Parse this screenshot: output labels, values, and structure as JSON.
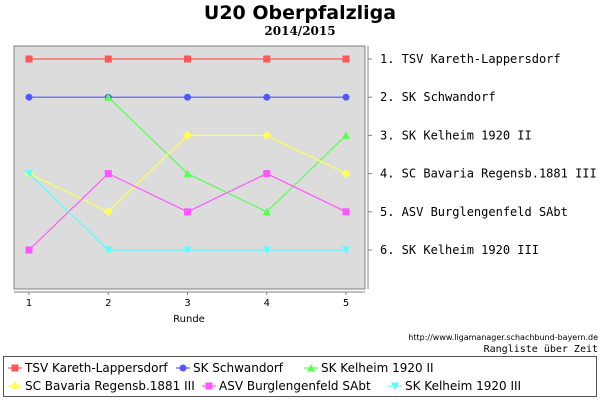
{
  "chart_data": {
    "type": "line",
    "title": "U20 Oberpfalzliga",
    "subtitle": "2014/2015",
    "xlabel": "Runde",
    "x": [
      1,
      2,
      3,
      4,
      5
    ],
    "ylim": [
      1,
      6
    ],
    "y_inverted": true,
    "grid": false,
    "background_color": "#dcdcdc",
    "final_ranking": [
      "1. TSV Kareth-Lappersdorf",
      "2. SK Schwandorf",
      "3. SK Kelheim 1920 II",
      "4. SC Bavaria Regensb.1881 III",
      "5. ASV Burglengenfeld SAbt",
      "6. SK Kelheim 1920 III"
    ],
    "series": [
      {
        "name": "TSV Kareth-Lappersdorf",
        "values": [
          1,
          1,
          1,
          1,
          1
        ],
        "color": "#ff5555",
        "marker": "square"
      },
      {
        "name": "SK Schwandorf",
        "values": [
          2,
          2,
          2,
          2,
          2
        ],
        "color": "#5555ff",
        "marker": "circle"
      },
      {
        "name": "SK Kelheim 1920 II",
        "values": [
          null,
          2,
          4,
          5,
          3
        ],
        "color": "#55ff55",
        "marker": "triangle-up"
      },
      {
        "name": "SC Bavaria Regensb.1881 III",
        "values": [
          4,
          5,
          3,
          3,
          4
        ],
        "color": "#ffff55",
        "marker": "diamond"
      },
      {
        "name": "ASV Burglengenfeld SAbt",
        "values": [
          6,
          4,
          5,
          4,
          5
        ],
        "color": "#ff55ff",
        "marker": "square"
      },
      {
        "name": "SK Kelheim 1920 III",
        "values": [
          4,
          6,
          6,
          6,
          6
        ],
        "color": "#55ffff",
        "marker": "triangle-down"
      }
    ],
    "legend_position": "bottom"
  },
  "footer": {
    "source": "http://www.ligamanager.schachbund-bayern.de",
    "caption": "Rangliste über Zeit"
  }
}
